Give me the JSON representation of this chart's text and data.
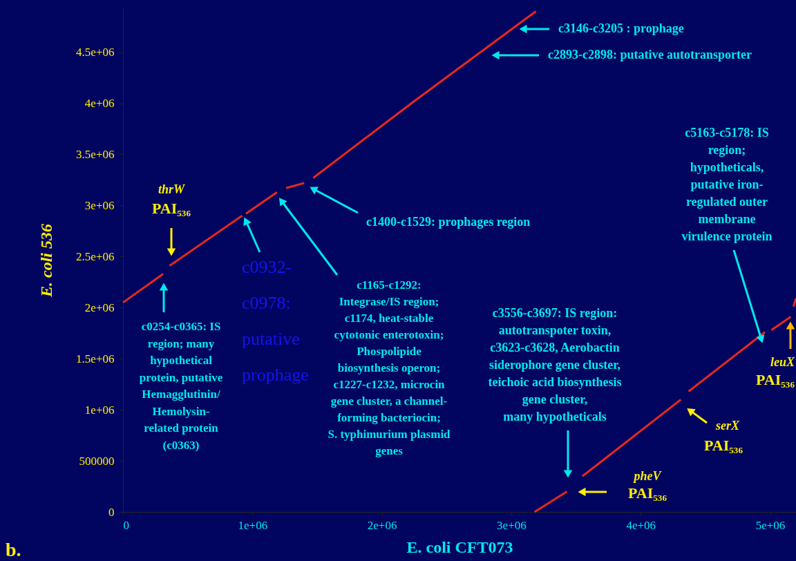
{
  "chart_data": {
    "type": "line",
    "xlabel": "E. coli CFT073",
    "ylabel": "E. coli 536",
    "xlim": [
      0,
      5200000
    ],
    "ylim": [
      0,
      4930000
    ],
    "xticks": [
      0,
      {
        "value": 1000000,
        "label": "1e+06"
      },
      {
        "value": 2000000,
        "label": "2e+06"
      },
      {
        "value": 3000000,
        "label": "3e+06"
      },
      {
        "value": 4000000,
        "label": "4e+06"
      },
      {
        "value": 5000000,
        "label": "5e+06"
      }
    ],
    "yticks": [
      0,
      {
        "value": 500000,
        "label": "500000"
      },
      {
        "value": 1000000,
        "label": "1e+06"
      },
      {
        "value": 1500000,
        "label": "1.5e+06"
      },
      {
        "value": 2000000,
        "label": "2e+06"
      },
      {
        "value": 2500000,
        "label": "2.5e+06"
      },
      {
        "value": 3000000,
        "label": "3e+06"
      },
      {
        "value": 3500000,
        "label": "3.5e+06"
      },
      {
        "value": 4000000,
        "label": "4e+06"
      },
      {
        "value": 4500000,
        "label": "4.5e+06"
      }
    ],
    "grid": false,
    "series": [
      {
        "color": "#e8281c",
        "x": [
          0,
          310000,
          null,
          360000,
          920000,
          null,
          950000,
          1190000,
          null,
          1260000,
          1400000,
          null,
          1470000,
          2250000,
          2580000,
          3190000
        ],
        "values": [
          2050000,
          2330000,
          null,
          2410000,
          2900000,
          null,
          2920000,
          3130000,
          null,
          3170000,
          3220000,
          null,
          3270000,
          4020000,
          4330000,
          4900000
        ]
      },
      {
        "color": "#e8281c",
        "x": [
          3180000,
          3430000,
          null,
          3550000,
          4310000,
          null,
          4370000,
          4960000,
          null,
          5010000,
          5160000,
          null,
          5180000,
          5200000
        ],
        "values": [
          0,
          200000,
          null,
          350000,
          1100000,
          null,
          1180000,
          1760000,
          null,
          1780000,
          1910000,
          null,
          2010000,
          2090000
        ]
      }
    ],
    "annotations": [
      "c3146-c3205 : prophage",
      "c2893-c2898: putative autotransporter",
      "c1400-c1529: prophages region",
      "c1165-c1292:\nIntegrase/IS region;\nc1174, heat-stable\ncytotonic enterotoxin;\nPhospolipide\nbiosynthesis operon;\nc1227-c1232, microcin\ngene cluster, a channel-\nforming bacteriocin;\nS. typhimurium plasmid\ngenes",
      {
        "text": "c0932-\nc0978:\nputative\nprophage",
        "x": 934000,
        "y": 2894000
      },
      "c0254-c0365: IS\nregion; many\nhypothetical\nprotein, putative\nHemagglutinin/\nHemolysin-\nrelated protein\n(c0363)",
      "thrW",
      "PAI₅₃₆",
      "c3556-c3697: IS region:\nautotranspoter toxin,\nc3623-c3628, Aerobactin\nsiderophore gene cluster,\nteichoic acid biosynthesis\ngene cluster,\nmany hypotheticals",
      "pheV",
      "PAI₅₃₆",
      "serX",
      "PAI₅₃₆",
      "c5163-c5178: IS\nregion;\nhypotheticals,\nputative iron-\nregulated outer\nmembrane\nvirulence protein",
      {
        "text": "leuX",
        "x": 5157000,
        "y": 1873000
      },
      "PAI₅₃₆",
      "b."
    ]
  }
}
